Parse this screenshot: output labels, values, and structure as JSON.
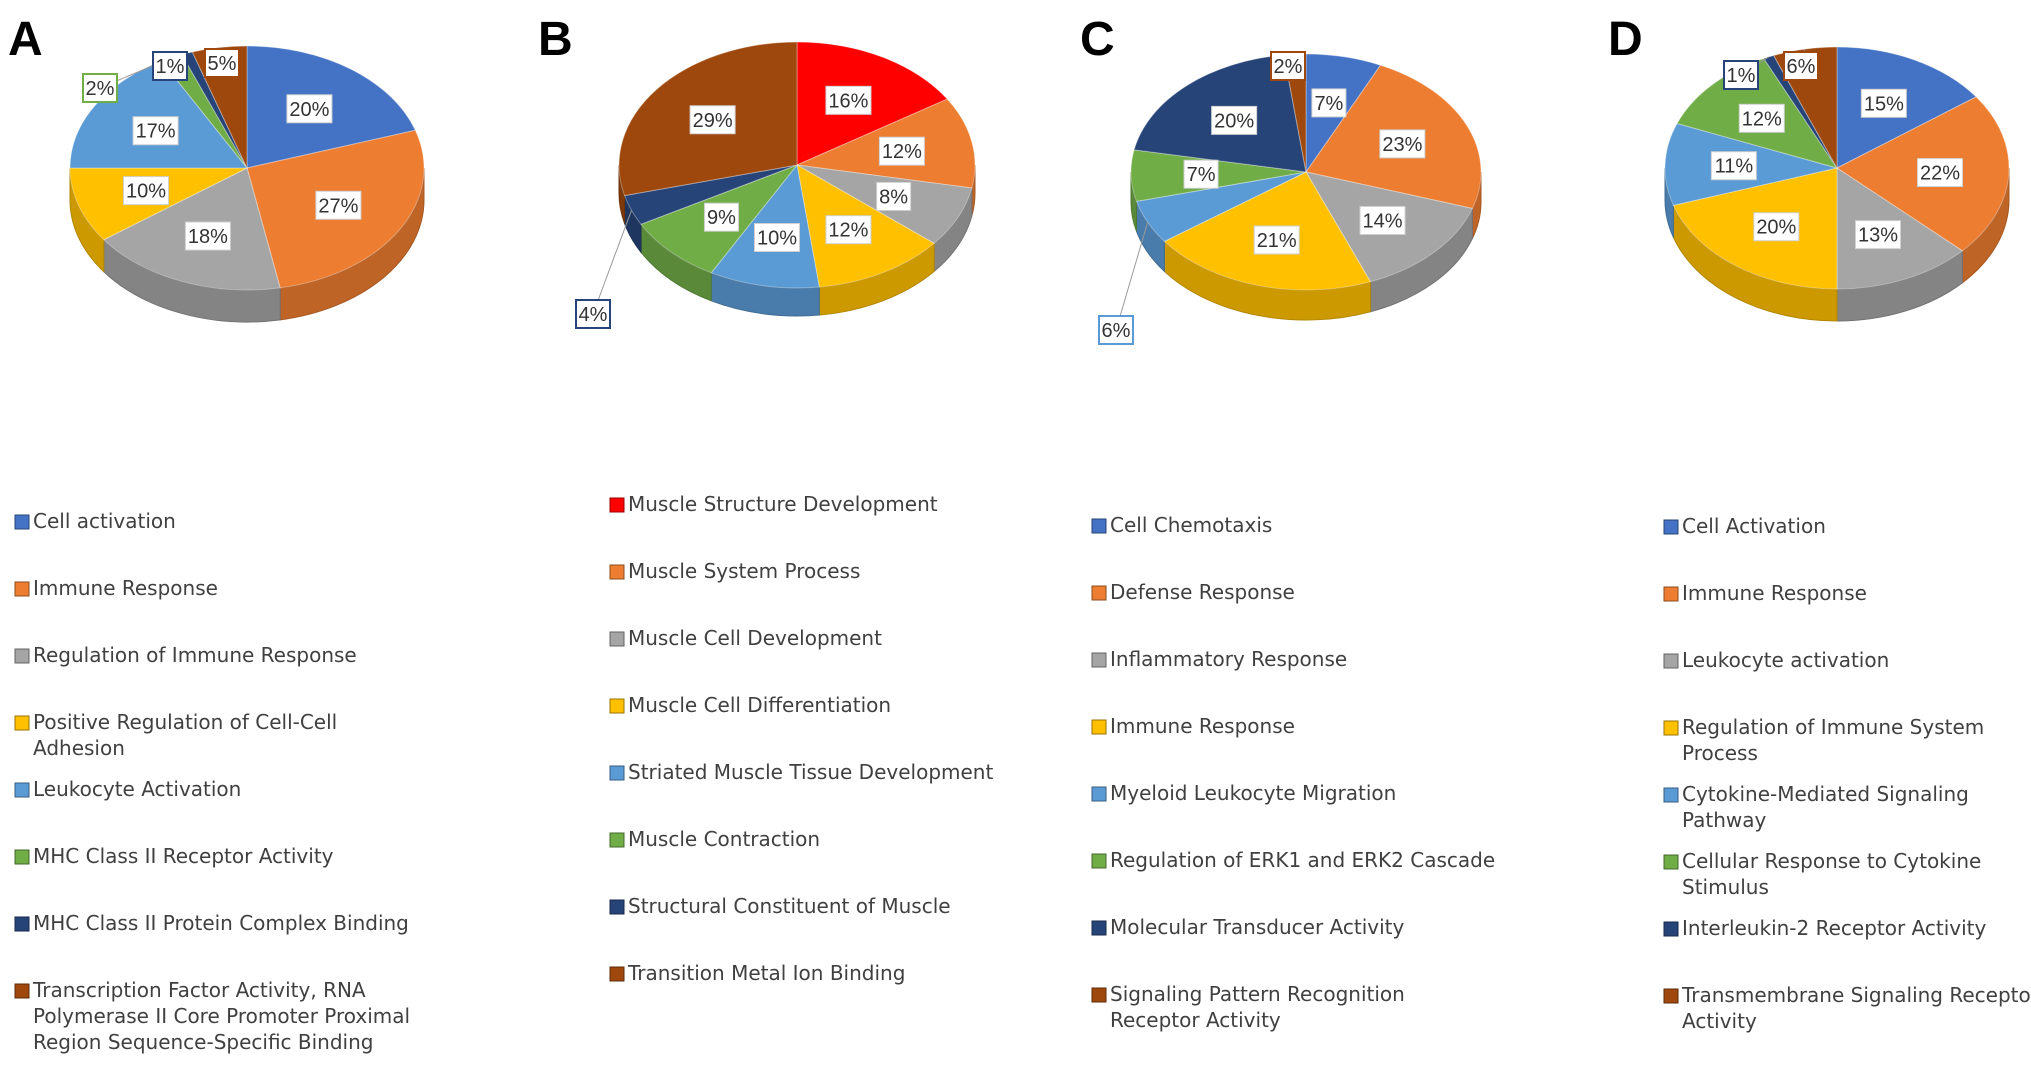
{
  "chart_data": [
    {
      "type": "pie",
      "panel": "A",
      "slices": [
        {
          "label": "Cell activation",
          "value": 20,
          "text": "20%",
          "color": "#4472C4"
        },
        {
          "label": "Immune Response",
          "value": 27,
          "text": "27%",
          "color": "#ED7D31"
        },
        {
          "label": "Regulation of Immune Response",
          "value": 18,
          "text": "18%",
          "color": "#A5A5A5"
        },
        {
          "label": "Positive Regulation of Cell-Cell Adhesion",
          "value": 10,
          "text": "10%",
          "color": "#FFC000"
        },
        {
          "label": "Leukocyte Activation",
          "value": 17,
          "text": "17%",
          "color": "#5B9BD5"
        },
        {
          "label": "MHC Class II Receptor Activity",
          "value": 2,
          "text": "2%",
          "color": "#70AD47"
        },
        {
          "label": "MHC Class II Protein Complex Binding",
          "value": 1,
          "text": "1%",
          "color": "#264478"
        },
        {
          "label": "Transcription Factor Activity, RNA Polymerase II Core Promoter Proximal Region Sequence-Specific Binding",
          "value": 5,
          "text": "5%",
          "color": "#9E480E"
        }
      ]
    },
    {
      "type": "pie",
      "panel": "B",
      "slices": [
        {
          "label": "Muscle Structure Development",
          "value": 16,
          "text": "16%",
          "color": "#FF0000"
        },
        {
          "label": "Muscle System Process",
          "value": 12,
          "text": "12%",
          "color": "#ED7D31"
        },
        {
          "label": "Muscle Cell Development",
          "value": 8,
          "text": "8%",
          "color": "#A5A5A5"
        },
        {
          "label": "Muscle Cell Differentiation",
          "value": 12,
          "text": "12%",
          "color": "#FFC000"
        },
        {
          "label": "Striated Muscle Tissue Development",
          "value": 10,
          "text": "10%",
          "color": "#5B9BD5"
        },
        {
          "label": "Muscle Contraction",
          "value": 9,
          "text": "9%",
          "color": "#70AD47"
        },
        {
          "label": "Structural Constituent of Muscle",
          "value": 4,
          "text": "4%",
          "color": "#264478"
        },
        {
          "label": "Transition Metal Ion Binding",
          "value": 29,
          "text": "29%",
          "color": "#9E480E"
        }
      ]
    },
    {
      "type": "pie",
      "panel": "C",
      "slices": [
        {
          "label": "Cell Chemotaxis",
          "value": 7,
          "text": "7%",
          "color": "#4472C4"
        },
        {
          "label": "Defense Response",
          "value": 23,
          "text": "23%",
          "color": "#ED7D31"
        },
        {
          "label": "Inflammatory Response",
          "value": 14,
          "text": "14%",
          "color": "#A5A5A5"
        },
        {
          "label": "Immune Response",
          "value": 21,
          "text": "21%",
          "color": "#FFC000"
        },
        {
          "label": "Myeloid Leukocyte Migration",
          "value": 6,
          "text": "6%",
          "color": "#5B9BD5"
        },
        {
          "label": "Regulation of ERK1 and ERK2 Cascade",
          "value": 7,
          "text": "7%",
          "color": "#70AD47"
        },
        {
          "label": "Molecular Transducer Activity",
          "value": 20,
          "text": "20%",
          "color": "#264478"
        },
        {
          "label": "Signaling Pattern Recognition Receptor Activity",
          "value": 2,
          "text": "2%",
          "color": "#9E480E"
        }
      ]
    },
    {
      "type": "pie",
      "panel": "D",
      "slices": [
        {
          "label": "Cell Activation",
          "value": 15,
          "text": "15%",
          "color": "#4472C4"
        },
        {
          "label": "Immune Response",
          "value": 22,
          "text": "22%",
          "color": "#ED7D31"
        },
        {
          "label": "Leukocyte activation",
          "value": 13,
          "text": "13%",
          "color": "#A5A5A5"
        },
        {
          "label": "Regulation of Immune System Process",
          "value": 20,
          "text": "20%",
          "color": "#FFC000"
        },
        {
          "label": "Cytokine-Mediated Signaling Pathway",
          "value": 11,
          "text": "11%",
          "color": "#5B9BD5"
        },
        {
          "label": "Cellular Response to Cytokine Stimulus",
          "value": 12,
          "text": "12%",
          "color": "#70AD47"
        },
        {
          "label": "Interleukin-2 Receptor Activity",
          "value": 1,
          "text": "1%",
          "color": "#264478"
        },
        {
          "label": "Transmembrane Signaling Receptor Activity",
          "value": 6,
          "text": "6%",
          "color": "#9E480E"
        }
      ]
    }
  ]
}
